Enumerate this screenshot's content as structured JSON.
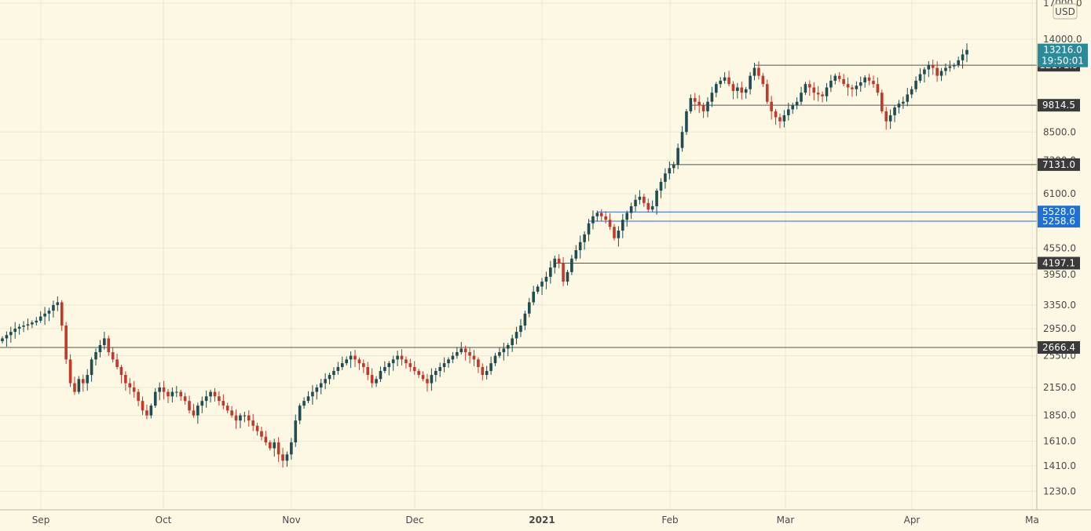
{
  "chart_data": {
    "type": "candlestick",
    "currency_label": "USD",
    "y_ticks": [
      "17000.0",
      "14000.0",
      "8500.0",
      "7300.0",
      "6100.0",
      "4550.0",
      "3950.0",
      "3350.0",
      "2950.0",
      "2550.0",
      "2150.0",
      "1850.0",
      "1610.0",
      "1410.0",
      "1230.0"
    ],
    "x_ticks": [
      "Sep",
      "Oct",
      "Nov",
      "Dec",
      "2021",
      "Feb",
      "Mar",
      "Apr",
      "Ma"
    ],
    "last_price": {
      "value": "13216.0",
      "countdown": "19:50:01"
    },
    "horizontal_levels": [
      {
        "label": "12171.9",
        "style": "gray"
      },
      {
        "label": "9814.5",
        "style": "gray"
      },
      {
        "label": "7131.0",
        "style": "gray"
      },
      {
        "label": "5528.0",
        "style": "blue"
      },
      {
        "label": "5258.6",
        "style": "blue"
      },
      {
        "label": "4197.1",
        "style": "gray"
      },
      {
        "label": "2666.4",
        "style": "gray"
      }
    ],
    "closes": [
      2800,
      2850,
      2900,
      2950,
      2980,
      3000,
      3020,
      3050,
      3080,
      3150,
      3200,
      3250,
      3350,
      3400,
      3000,
      2500,
      2200,
      2100,
      2250,
      2200,
      2300,
      2500,
      2600,
      2700,
      2800,
      2600,
      2500,
      2400,
      2300,
      2200,
      2150,
      2100,
      2000,
      1900,
      1850,
      1950,
      2100,
      2150,
      2100,
      2050,
      2100,
      2100,
      2050,
      2000,
      1900,
      1850,
      1950,
      2000,
      2050,
      2100,
      2050,
      2000,
      1950,
      1900,
      1850,
      1800,
      1850,
      1850,
      1800,
      1750,
      1700,
      1650,
      1600,
      1550,
      1600,
      1500,
      1450,
      1500,
      1600,
      1800,
      1950,
      2000,
      2050,
      2100,
      2150,
      2200,
      2250,
      2300,
      2350,
      2400,
      2450,
      2500,
      2550,
      2500,
      2450,
      2400,
      2300,
      2200,
      2250,
      2350,
      2400,
      2450,
      2500,
      2550,
      2500,
      2450,
      2400,
      2350,
      2300,
      2250,
      2200,
      2300,
      2350,
      2400,
      2450,
      2500,
      2550,
      2600,
      2650,
      2600,
      2550,
      2500,
      2400,
      2300,
      2350,
      2450,
      2550,
      2600,
      2650,
      2700,
      2800,
      2900,
      3000,
      3200,
      3400,
      3600,
      3700,
      3800,
      3900,
      4100,
      4300,
      4200,
      3800,
      4000,
      4300,
      4500,
      4700,
      4900,
      5200,
      5400,
      5500,
      5400,
      5300,
      5100,
      4800,
      5000,
      5300,
      5500,
      5700,
      5900,
      6000,
      5800,
      5600,
      5700,
      6200,
      6500,
      6800,
      7000,
      7131,
      7800,
      8500,
      9500,
      10200,
      10000,
      9800,
      9500,
      10000,
      10500,
      11000,
      11200,
      11400,
      11000,
      10600,
      10800,
      10500,
      10700,
      11500,
      12000,
      11500,
      11000,
      10000,
      9500,
      9200,
      9000,
      9300,
      9600,
      9800,
      10000,
      10500,
      11000,
      10800,
      10500,
      10400,
      10300,
      10800,
      11200,
      11500,
      11300,
      11000,
      10800,
      10700,
      10900,
      11100,
      11400,
      11200,
      11000,
      10500,
      9500,
      9000,
      9300,
      9700,
      9900,
      10000,
      10400,
      10700,
      11200,
      11600,
      11900,
      12200,
      12000,
      11500,
      11800,
      12000,
      12100,
      12171,
      12500,
      12900,
      13216
    ]
  }
}
